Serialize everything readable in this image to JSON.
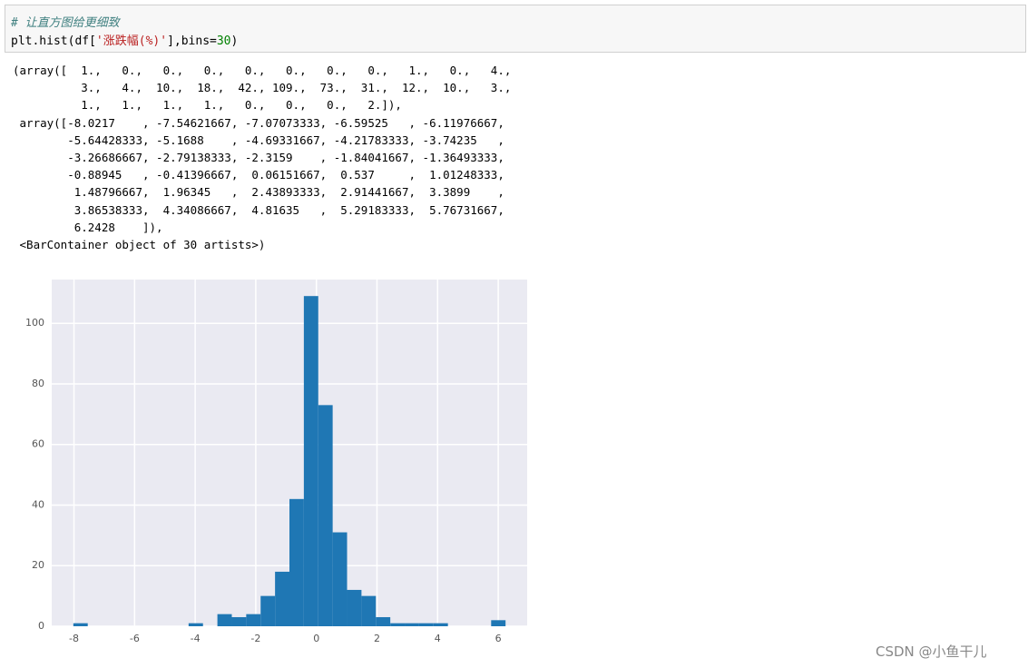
{
  "cell": {
    "comment": "# 让直方图给更细致",
    "code": [
      {
        "text": "plt.hist(df[",
        "color": "#000000"
      },
      {
        "text": "'涨跌幅(%)'",
        "color": "#ba2121"
      },
      {
        "text": "],bins=",
        "color": "#000000"
      },
      {
        "text": "30",
        "color": "#008000"
      },
      {
        "text": ")",
        "color": "#000000"
      }
    ]
  },
  "output": {
    "lines": [
      "(array([  1.,   0.,   0.,   0.,   0.,   0.,   0.,   0.,   1.,   0.,   4.,",
      "          3.,   4.,  10.,  18.,  42., 109.,  73.,  31.,  12.,  10.,   3.,",
      "          1.,   1.,   1.,   1.,   0.,   0.,   0.,   2.]),",
      " array([-8.0217    , -7.54621667, -7.07073333, -6.59525   , -6.11976667,",
      "        -5.64428333, -5.1688    , -4.69331667, -4.21783333, -3.74235   ,",
      "        -3.26686667, -2.79138333, -2.3159    , -1.84041667, -1.36493333,",
      "        -0.88945   , -0.41396667,  0.06151667,  0.537     ,  1.01248333,",
      "         1.48796667,  1.96345   ,  2.43893333,  2.91441667,  3.3899    ,",
      "         3.86538333,  4.34086667,  4.81635   ,  5.29183333,  5.76731667,",
      "         6.2428    ]),",
      " <BarContainer object of 30 artists>)"
    ]
  },
  "chart_data": {
    "type": "histogram",
    "color": "#1f77b4",
    "grid": true,
    "bins": [
      -8.0217,
      -7.54621667,
      -7.07073333,
      -6.59525,
      -6.11976667,
      -5.64428333,
      -5.1688,
      -4.69331667,
      -4.21783333,
      -3.74235,
      -3.26686667,
      -2.79138333,
      -2.3159,
      -1.84041667,
      -1.36493333,
      -0.88945,
      -0.41396667,
      0.06151667,
      0.537,
      1.01248333,
      1.48796667,
      1.96345,
      2.43893333,
      2.91441667,
      3.3899,
      3.86538333,
      4.34086667,
      4.81635,
      5.29183333,
      5.76731667,
      6.2428
    ],
    "values": [
      1,
      0,
      0,
      0,
      0,
      0,
      0,
      0,
      1,
      0,
      4,
      3,
      4,
      10,
      18,
      42,
      109,
      73,
      31,
      12,
      10,
      3,
      1,
      1,
      1,
      1,
      0,
      0,
      0,
      2
    ],
    "xlim": [
      -8.735,
      6.956
    ],
    "ylim": [
      0,
      114.45
    ],
    "xticks": [
      -8,
      -6,
      -4,
      -2,
      0,
      2,
      4,
      6
    ],
    "yticks": [
      0,
      20,
      40,
      60,
      80,
      100
    ]
  },
  "watermark": "CSDN @小鱼干儿"
}
